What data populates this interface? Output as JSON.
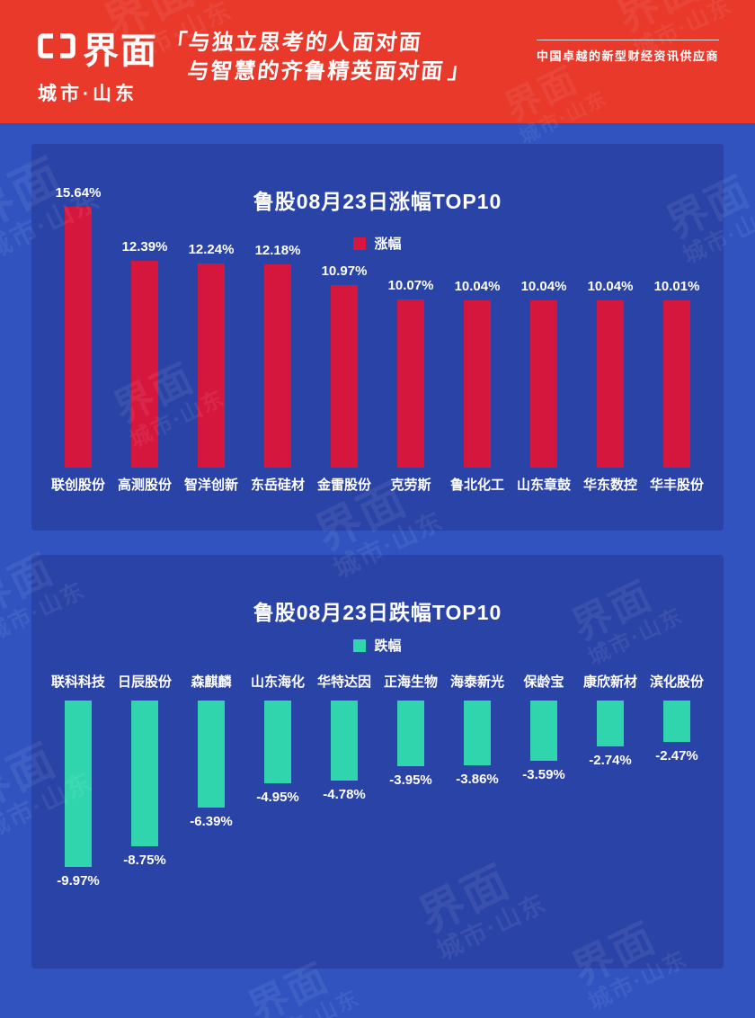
{
  "header": {
    "logo_text": "界面",
    "logo_sub": "城市·山东",
    "quote_open": "「",
    "quote_line1": "与独立思考的人面对面",
    "quote_line2": "与智慧的齐鲁精英面对面",
    "quote_close": "」",
    "tagline": "中国卓越的新型财经资讯供应商"
  },
  "watermark": {
    "line1": "界面",
    "line2": "城市·山东"
  },
  "colors": {
    "header_bg": "#E8392B",
    "page_bg": "#3053C0",
    "card_bg": "#2A43A6",
    "up_bar": "#D6173D",
    "down_bar": "#30D5AE"
  },
  "chart_data": [
    {
      "type": "bar",
      "title": "鲁股08月23日涨幅TOP10",
      "legend": "涨幅",
      "legend_position": "top",
      "bar_color": "#D6173D",
      "grid": false,
      "ylim": [
        0,
        16
      ],
      "categories": [
        "联创股份",
        "高测股份",
        "智洋创新",
        "东岳硅材",
        "金雷股份",
        "克劳斯",
        "鲁北化工",
        "山东章鼓",
        "华东数控",
        "华丰股份"
      ],
      "values": [
        15.64,
        12.39,
        12.24,
        12.18,
        10.97,
        10.07,
        10.04,
        10.04,
        10.04,
        10.01
      ],
      "labels": [
        "15.64%",
        "12.39%",
        "12.24%",
        "12.18%",
        "10.97%",
        "10.07%",
        "10.04%",
        "10.04%",
        "10.04%",
        "10.01%"
      ]
    },
    {
      "type": "bar",
      "title": "鲁股08月23日跌幅TOP10",
      "legend": "跌幅",
      "legend_position": "top",
      "bar_color": "#30D5AE",
      "grid": false,
      "ylim": [
        -10.5,
        0
      ],
      "categories": [
        "联科科技",
        "日辰股份",
        "森麒麟",
        "山东海化",
        "华特达因",
        "正海生物",
        "海泰新光",
        "保龄宝",
        "康欣新材",
        "滨化股份"
      ],
      "values": [
        -9.97,
        -8.75,
        -6.39,
        -4.95,
        -4.78,
        -3.95,
        -3.86,
        -3.59,
        -2.74,
        -2.47
      ],
      "labels": [
        "-9.97%",
        "-8.75%",
        "-6.39%",
        "-4.95%",
        "-4.78%",
        "-3.95%",
        "-3.86%",
        "-3.59%",
        "-2.74%",
        "-2.47%"
      ]
    }
  ]
}
